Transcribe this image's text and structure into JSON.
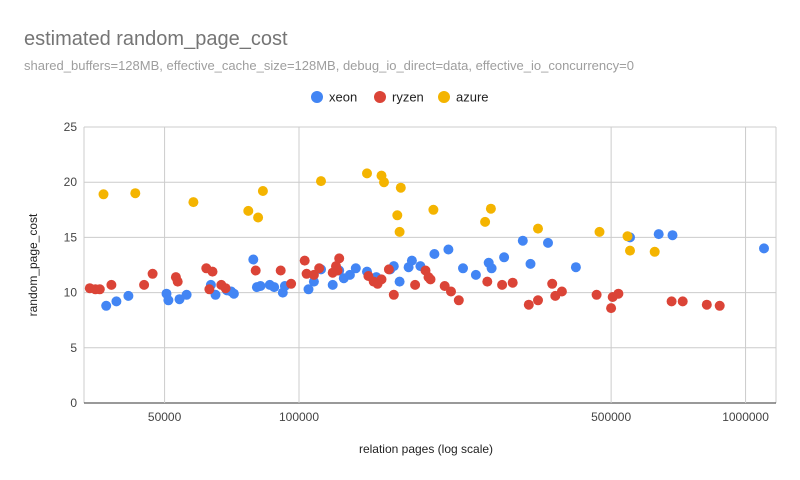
{
  "chart_data": {
    "type": "scatter",
    "title": "estimated random_page_cost",
    "subtitle": "shared_buffers=128MB, effective_cache_size=128MB, debug_io_direct=data, effective_io_concurrency=0",
    "xlabel": "relation pages (log scale)",
    "ylabel": "random_page_cost",
    "x_scale": "log",
    "xlim": [
      33000,
      1170000
    ],
    "ylim": [
      0,
      25
    ],
    "x_ticks": [
      50000,
      100000,
      500000,
      1000000
    ],
    "x_tick_labels": [
      "50000",
      "100000",
      "500000",
      "1000000"
    ],
    "y_ticks": [
      0,
      5,
      10,
      15,
      20,
      25
    ],
    "y_tick_labels": [
      "0",
      "5",
      "10",
      "15",
      "20",
      "25"
    ],
    "grid": true,
    "legend_position": "top",
    "series": [
      {
        "name": "xeon",
        "color": "#4285f4",
        "points": [
          [
            37000,
            8.8
          ],
          [
            39000,
            9.2
          ],
          [
            41500,
            9.7
          ],
          [
            50500,
            9.9
          ],
          [
            51000,
            9.3
          ],
          [
            54000,
            9.4
          ],
          [
            56000,
            9.8
          ],
          [
            63500,
            10.7
          ],
          [
            65000,
            9.8
          ],
          [
            69000,
            10.2
          ],
          [
            70500,
            10.1
          ],
          [
            71500,
            9.9
          ],
          [
            79000,
            13.0
          ],
          [
            80500,
            10.5
          ],
          [
            82000,
            10.6
          ],
          [
            86000,
            10.7
          ],
          [
            88000,
            10.5
          ],
          [
            92000,
            10.0
          ],
          [
            93000,
            10.6
          ],
          [
            105000,
            10.3
          ],
          [
            108000,
            11.0
          ],
          [
            112000,
            12.1
          ],
          [
            119000,
            10.7
          ],
          [
            123000,
            12.0
          ],
          [
            126000,
            11.3
          ],
          [
            130000,
            11.6
          ],
          [
            134000,
            12.2
          ],
          [
            142000,
            11.9
          ],
          [
            149000,
            11.4
          ],
          [
            152000,
            11.2
          ],
          [
            160000,
            12.1
          ],
          [
            163000,
            12.4
          ],
          [
            168000,
            11.0
          ],
          [
            176000,
            12.3
          ],
          [
            179000,
            12.9
          ],
          [
            187000,
            12.4
          ],
          [
            201000,
            13.5
          ],
          [
            216000,
            13.9
          ],
          [
            233000,
            12.2
          ],
          [
            249000,
            11.6
          ],
          [
            266000,
            12.7
          ],
          [
            270000,
            12.2
          ],
          [
            288000,
            13.2
          ],
          [
            317000,
            14.7
          ],
          [
            330000,
            12.6
          ],
          [
            361000,
            14.5
          ],
          [
            417000,
            12.3
          ],
          [
            551000,
            15.0
          ],
          [
            639000,
            15.3
          ],
          [
            686000,
            15.2
          ],
          [
            1100000,
            14.0
          ]
        ]
      },
      {
        "name": "ryzen",
        "color": "#db4437",
        "points": [
          [
            34000,
            10.4
          ],
          [
            35000,
            10.3
          ],
          [
            35800,
            10.3
          ],
          [
            38000,
            10.7
          ],
          [
            45000,
            10.7
          ],
          [
            47000,
            11.7
          ],
          [
            53000,
            11.4
          ],
          [
            53500,
            11.0
          ],
          [
            62000,
            12.2
          ],
          [
            63000,
            10.3
          ],
          [
            64000,
            11.9
          ],
          [
            67000,
            10.7
          ],
          [
            68500,
            10.4
          ],
          [
            80000,
            12.0
          ],
          [
            91000,
            12.0
          ],
          [
            96000,
            10.8
          ],
          [
            103000,
            12.9
          ],
          [
            104000,
            11.7
          ],
          [
            108000,
            11.6
          ],
          [
            111000,
            12.2
          ],
          [
            119000,
            11.8
          ],
          [
            121000,
            12.4
          ],
          [
            122000,
            12.0
          ],
          [
            123000,
            13.1
          ],
          [
            143000,
            11.5
          ],
          [
            147000,
            11.0
          ],
          [
            150000,
            10.8
          ],
          [
            153000,
            11.2
          ],
          [
            159000,
            12.1
          ],
          [
            163000,
            9.8
          ],
          [
            182000,
            10.7
          ],
          [
            192000,
            12.0
          ],
          [
            195000,
            11.4
          ],
          [
            197000,
            11.2
          ],
          [
            212000,
            10.6
          ],
          [
            219000,
            10.1
          ],
          [
            228000,
            9.3
          ],
          [
            264000,
            11.0
          ],
          [
            285000,
            10.7
          ],
          [
            301000,
            10.9
          ],
          [
            327000,
            8.9
          ],
          [
            343000,
            9.3
          ],
          [
            369000,
            10.8
          ],
          [
            375000,
            9.7
          ],
          [
            388000,
            10.1
          ],
          [
            464000,
            9.8
          ],
          [
            500000,
            8.6
          ],
          [
            504000,
            9.6
          ],
          [
            519000,
            9.9
          ],
          [
            683000,
            9.2
          ],
          [
            723000,
            9.2
          ],
          [
            819000,
            8.9
          ],
          [
            875000,
            8.8
          ]
        ]
      },
      {
        "name": "azure",
        "color": "#f4b400",
        "points": [
          [
            36500,
            18.9
          ],
          [
            43000,
            19.0
          ],
          [
            58000,
            18.2
          ],
          [
            77000,
            17.4
          ],
          [
            81000,
            16.8
          ],
          [
            83000,
            19.2
          ],
          [
            112000,
            20.1
          ],
          [
            142000,
            20.8
          ],
          [
            153000,
            20.6
          ],
          [
            155000,
            20.0
          ],
          [
            166000,
            17.0
          ],
          [
            168000,
            15.5
          ],
          [
            169000,
            19.5
          ],
          [
            200000,
            17.5
          ],
          [
            261000,
            16.4
          ],
          [
            269000,
            17.6
          ],
          [
            343000,
            15.8
          ],
          [
            471000,
            15.5
          ],
          [
            544000,
            15.1
          ],
          [
            551000,
            13.8
          ],
          [
            626000,
            13.7
          ]
        ]
      }
    ]
  }
}
